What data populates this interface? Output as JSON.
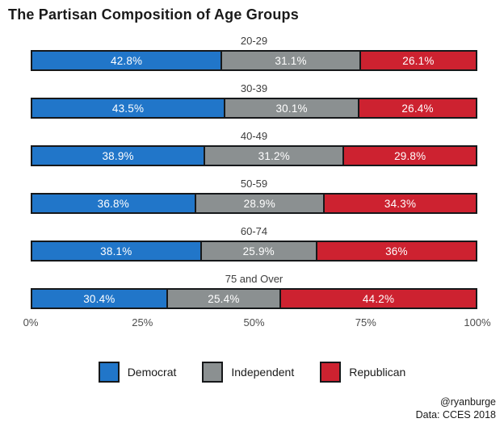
{
  "title": "The Partisan Composition of Age Groups",
  "colors": {
    "democrat": "#2176c9",
    "independent": "#8b9091",
    "republican": "#cd2230",
    "outline": "#16181a",
    "label_text": "#ffffff"
  },
  "legend": {
    "items": [
      {
        "label": "Democrat",
        "color": "#2176c9"
      },
      {
        "label": "Independent",
        "color": "#8b9091"
      },
      {
        "label": "Republican",
        "color": "#cd2230"
      }
    ]
  },
  "axis": {
    "ticks": [
      "0%",
      "25%",
      "50%",
      "75%",
      "100%"
    ],
    "positions": [
      0,
      25,
      50,
      75,
      100
    ]
  },
  "caption": {
    "line1": "@ryanburge",
    "line2": "Data: CCES 2018"
  },
  "chart_data": {
    "type": "bar",
    "variant": "stacked-horizontal-100pct",
    "title": "The Partisan Composition of Age Groups",
    "xlabel": "",
    "ylabel": "",
    "xlim": [
      0,
      100
    ],
    "grid": false,
    "legend_position": "bottom",
    "categories": [
      "20-29",
      "30-39",
      "40-49",
      "50-59",
      "60-74",
      "75 and Over"
    ],
    "series": [
      {
        "name": "Democrat",
        "color": "#2176c9",
        "values": [
          42.8,
          43.5,
          38.9,
          36.8,
          38.1,
          30.4
        ]
      },
      {
        "name": "Independent",
        "color": "#8b9091",
        "values": [
          31.1,
          30.1,
          31.2,
          28.9,
          25.9,
          25.4
        ]
      },
      {
        "name": "Republican",
        "color": "#cd2230",
        "values": [
          26.1,
          26.4,
          29.8,
          34.3,
          36.0,
          44.2
        ]
      }
    ],
    "value_labels": [
      [
        "42.8%",
        "31.1%",
        "26.1%"
      ],
      [
        "43.5%",
        "30.1%",
        "26.4%"
      ],
      [
        "38.9%",
        "31.2%",
        "29.8%"
      ],
      [
        "36.8%",
        "28.9%",
        "34.3%"
      ],
      [
        "38.1%",
        "25.9%",
        "36%"
      ],
      [
        "30.4%",
        "25.4%",
        "44.2%"
      ]
    ]
  }
}
